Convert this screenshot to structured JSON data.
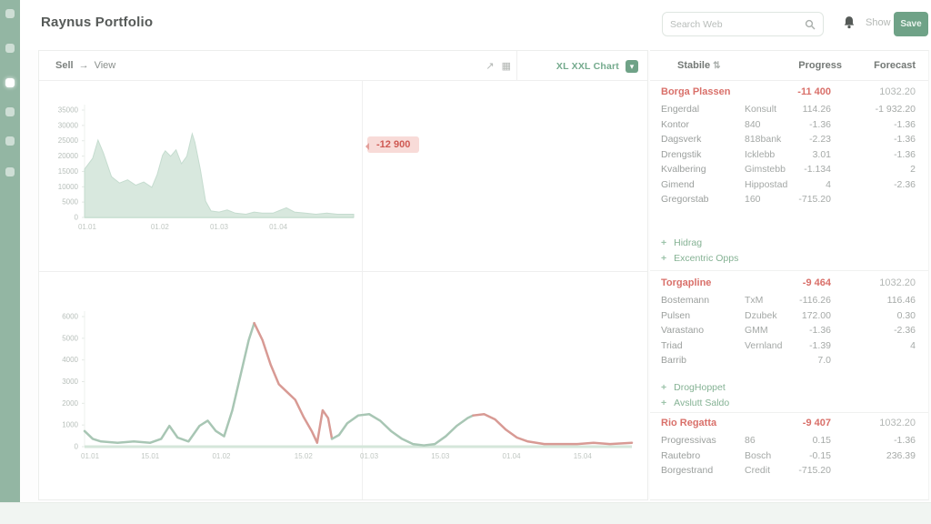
{
  "app": {
    "title": "Raynus Portfolio"
  },
  "header": {
    "search_placeholder": "Search Web",
    "show_label": "Show",
    "save_label": "Save"
  },
  "sidebar": {
    "items": [
      {
        "name": "menu"
      },
      {
        "name": "dashboard"
      },
      {
        "name": "charts",
        "active": true
      },
      {
        "name": "documents"
      },
      {
        "name": "reports"
      },
      {
        "name": "settings"
      }
    ]
  },
  "toolbar": {
    "breadcrumb_left": "Sell",
    "breadcrumb_arrow": "→",
    "breadcrumb_right": "View",
    "expand_icon": "↗",
    "grid_icon": "▦",
    "dropdown_label": "XL XXL Chart",
    "dropdown_caret": "▾"
  },
  "badge": {
    "value": "-12 900"
  },
  "right_panel": {
    "columns": {
      "col1": "Stabile",
      "sort": "⇅",
      "col2": "Progress",
      "col3": "Forecast"
    },
    "sections": [
      {
        "title": "Borga Plassen",
        "total": "-11 400",
        "forecast": "1032.20",
        "rows": [
          [
            "Engerdal",
            "Konsult",
            "114.26",
            "-1 932.20"
          ],
          [
            "Kontor",
            "840",
            "-1.36",
            "-1.36"
          ],
          [
            "Dagsverk",
            "818bank",
            "-2.23",
            "-1.36"
          ],
          [
            "Drengstik",
            "Icklebb",
            "3.01",
            "-1.36"
          ],
          [
            "Kvalbering",
            "Gimstebb",
            "-1.134",
            "2"
          ],
          [
            "Gimend",
            "Hippostad",
            "4",
            "-2.36"
          ],
          [
            "Gregorstab",
            "160",
            "-715.20",
            ""
          ]
        ],
        "links": [
          "Hidrag",
          "Excentric Opps"
        ]
      },
      {
        "title": "Torgapline",
        "total": "-9 464",
        "forecast": "1032.20",
        "rows": [
          [
            "Bostemann",
            "TxM",
            "-116.26",
            "116.46"
          ],
          [
            "Pulsen",
            "Dzubek",
            "172.00",
            "0.30"
          ],
          [
            "Varastano",
            "GMM",
            "-1.36",
            "-2.36"
          ],
          [
            "Triad",
            "Vernland",
            "-1.39",
            "4"
          ],
          [
            "Barrib",
            "",
            "7.0",
            ""
          ]
        ],
        "links": [
          "DrogHoppet",
          "Avslutt Saldo"
        ]
      },
      {
        "title": "Rio Regatta",
        "total": "-9 407",
        "forecast": "1032.20",
        "rows": [
          [
            "Progressivas",
            "86",
            "0.15",
            "-1.36"
          ],
          [
            "Rautebro",
            "Bosch",
            "-0.15",
            "236.39"
          ],
          [
            "Borgestrand",
            "Credit",
            "-715.20",
            ""
          ]
        ],
        "links": []
      }
    ]
  },
  "chart_data": [
    {
      "type": "area",
      "title": "",
      "xlabel": "",
      "ylabel": "",
      "ylim": [
        0,
        35000
      ],
      "grid": false,
      "legend": "none",
      "yticks": [
        "35000",
        "30000",
        "25000",
        "20000",
        "15000",
        "10000",
        "5000",
        "0"
      ],
      "xticks": [
        {
          "pos": 1,
          "label": "01.01"
        },
        {
          "pos": 28,
          "label": "01.02"
        },
        {
          "pos": 50,
          "label": "01.03"
        },
        {
          "pos": 72,
          "label": "01.04"
        }
      ],
      "fill": "#d8e8de",
      "stroke": "#c5dccf",
      "axis_color": "#dcebe1",
      "points": [
        [
          0,
          45
        ],
        [
          3,
          55
        ],
        [
          5,
          72
        ],
        [
          7,
          60
        ],
        [
          10,
          38
        ],
        [
          13,
          32
        ],
        [
          16,
          35
        ],
        [
          19,
          30
        ],
        [
          22,
          33
        ],
        [
          25,
          28
        ],
        [
          27,
          40
        ],
        [
          29,
          58
        ],
        [
          30,
          62
        ],
        [
          32,
          57
        ],
        [
          34,
          63
        ],
        [
          36,
          50
        ],
        [
          38,
          57
        ],
        [
          40,
          78
        ],
        [
          41,
          70
        ],
        [
          43,
          45
        ],
        [
          45,
          15
        ],
        [
          47,
          6
        ],
        [
          50,
          5
        ],
        [
          53,
          7
        ],
        [
          56,
          4
        ],
        [
          60,
          3
        ],
        [
          63,
          5
        ],
        [
          66,
          4
        ],
        [
          70,
          4
        ],
        [
          73,
          7
        ],
        [
          75,
          9
        ],
        [
          78,
          5
        ],
        [
          82,
          4
        ],
        [
          86,
          3
        ],
        [
          90,
          4
        ],
        [
          94,
          3
        ],
        [
          97,
          3
        ],
        [
          100,
          3
        ]
      ]
    },
    {
      "type": "line",
      "title": "",
      "xlabel": "",
      "ylabel": "",
      "ylim": [
        0,
        6000
      ],
      "grid": false,
      "legend": "none",
      "yticks": [
        "6000",
        "5000",
        "4000",
        "3000",
        "2000",
        "1000",
        "0"
      ],
      "xticks": [
        {
          "pos": 1,
          "label": "01.01"
        },
        {
          "pos": 12,
          "label": "15.01"
        },
        {
          "pos": 25,
          "label": "01.02"
        },
        {
          "pos": 40,
          "label": "15.02"
        },
        {
          "pos": 52,
          "label": "01.03"
        },
        {
          "pos": 65,
          "label": "15.03"
        },
        {
          "pos": 78,
          "label": "01.04"
        },
        {
          "pos": 91,
          "label": "15.04"
        }
      ],
      "axis_color": "#d4e6da",
      "series": [
        {
          "name": "gain",
          "color": "#a8c6b4",
          "points": [
            [
              0,
              12
            ],
            [
              1.5,
              6
            ],
            [
              3,
              4
            ],
            [
              6,
              3
            ],
            [
              9,
              4
            ],
            [
              12,
              3
            ],
            [
              14,
              6
            ],
            [
              15.5,
              16
            ],
            [
              17,
              7
            ],
            [
              19,
              4
            ],
            [
              21,
              16
            ],
            [
              22.5,
              20
            ],
            [
              24,
              12
            ],
            [
              25.5,
              8
            ],
            [
              27,
              28
            ],
            [
              28.5,
              55
            ],
            [
              30,
              82
            ],
            [
              31,
              95
            ]
          ]
        },
        {
          "name": "loss",
          "color": "#d89a94",
          "points": [
            [
              31,
              95
            ],
            [
              32.5,
              82
            ],
            [
              34,
              63
            ],
            [
              35.5,
              48
            ],
            [
              37,
              42
            ],
            [
              38.5,
              36
            ],
            [
              40,
              23
            ],
            [
              41.5,
              12
            ],
            [
              42.5,
              3
            ],
            [
              43.5,
              28
            ],
            [
              44.5,
              22
            ],
            [
              45.2,
              6
            ]
          ]
        },
        {
          "name": "gain2",
          "color": "#a8c6b4",
          "points": [
            [
              45.2,
              6
            ],
            [
              46.5,
              9
            ],
            [
              48,
              18
            ],
            [
              50,
              24
            ],
            [
              52,
              25
            ],
            [
              54,
              20
            ],
            [
              56,
              12
            ],
            [
              58,
              6
            ],
            [
              60,
              2
            ],
            [
              62,
              1
            ],
            [
              64,
              2
            ],
            [
              66,
              8
            ],
            [
              68,
              16
            ],
            [
              70,
              22
            ],
            [
              71,
              24
            ]
          ]
        },
        {
          "name": "loss2",
          "color": "#d89a94",
          "points": [
            [
              71,
              24
            ],
            [
              73,
              25
            ],
            [
              75,
              21
            ],
            [
              77,
              13
            ],
            [
              79,
              7
            ],
            [
              81,
              4
            ],
            [
              84,
              2
            ],
            [
              87,
              2
            ],
            [
              90,
              2
            ],
            [
              93,
              3
            ],
            [
              96,
              2
            ],
            [
              100,
              3
            ]
          ]
        }
      ]
    }
  ]
}
